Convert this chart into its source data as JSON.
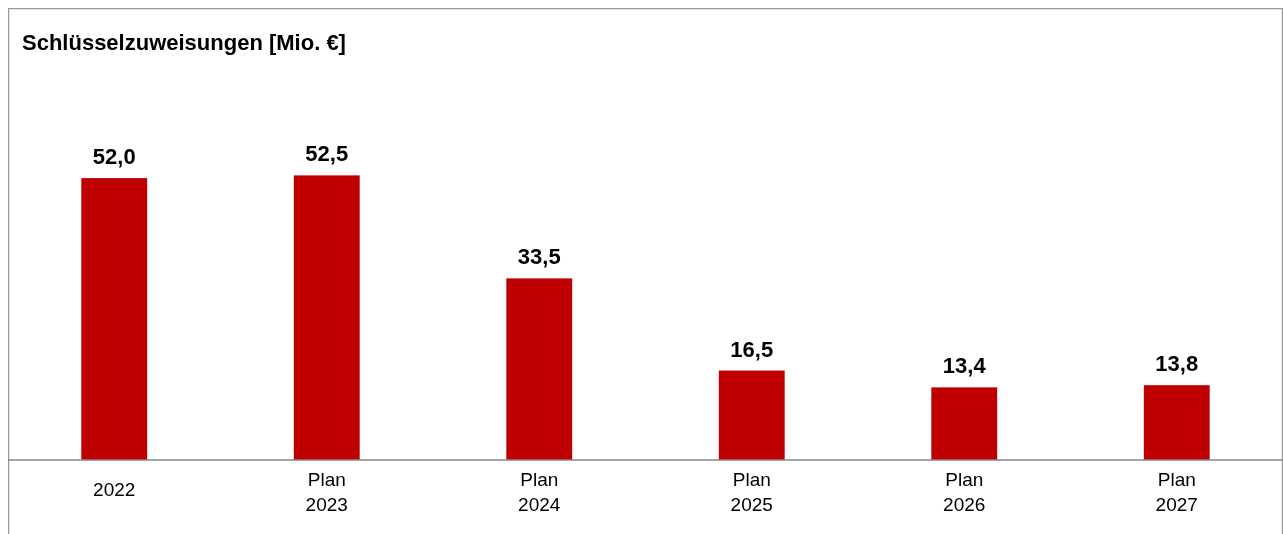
{
  "chart_data": {
    "type": "bar",
    "title": "Schlüsselzuweisungen [Mio. €]",
    "categories": [
      "2022",
      "Plan 2023",
      "Plan 2024",
      "Plan 2025",
      "Plan 2026",
      "Plan 2027"
    ],
    "values": [
      52.0,
      52.5,
      33.5,
      16.5,
      13.4,
      13.8
    ],
    "value_labels": [
      "52,0",
      "52,5",
      "33,5",
      "16,5",
      "13,4",
      "13,8"
    ],
    "color": "#c00000"
  }
}
